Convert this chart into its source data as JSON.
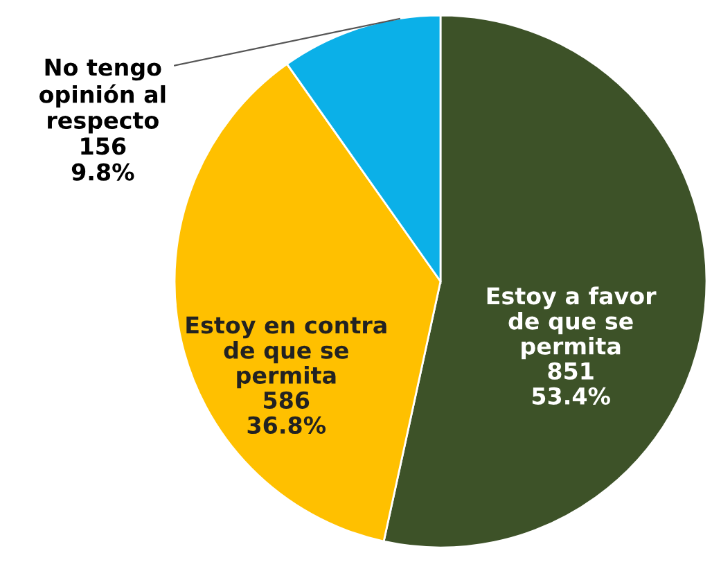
{
  "chart_data": {
    "type": "pie",
    "categories": [
      "Estoy a favor\nde que se\npermita",
      "Estoy en contra\nde que se\npermita",
      "No tengo\nopinión al\nrespecto"
    ],
    "values": [
      851,
      586,
      156
    ],
    "value_labels": [
      "851\n53.4%",
      "586\n36.8%",
      "156\n9.8%"
    ],
    "colors": [
      "#3d5228",
      "#ffc000",
      "#0bb0e8"
    ],
    "legend": false
  }
}
